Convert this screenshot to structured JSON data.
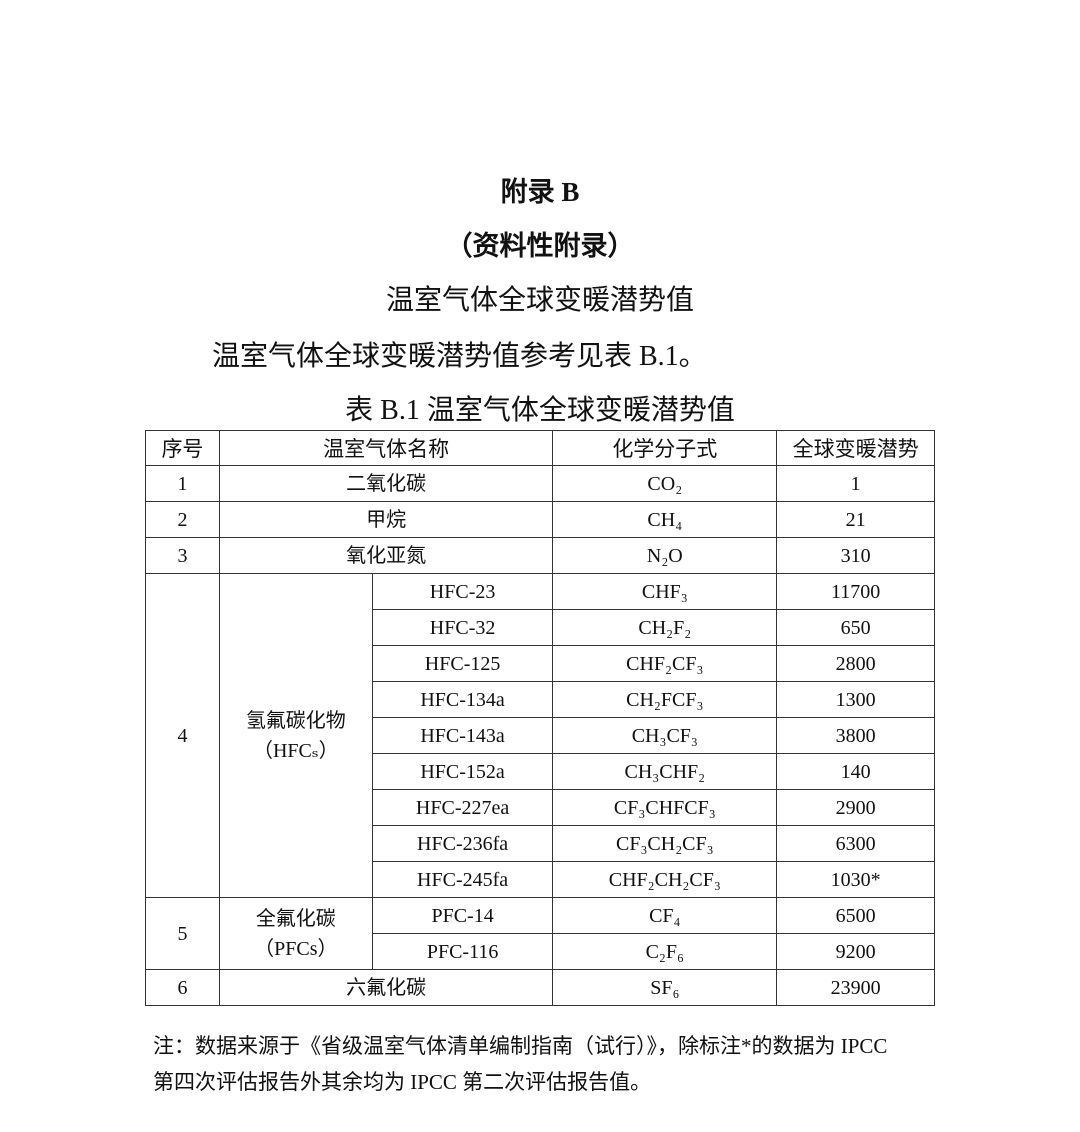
{
  "heading": {
    "appendix": "附录 B",
    "type": "（资料性附录）",
    "subject": "温室气体全球变暖潜势值"
  },
  "intro": "温室气体全球变暖潜势值参考见表 B.1。",
  "caption": "表 B.1  温室气体全球变暖潜势值",
  "table": {
    "headers": [
      "序号",
      "温室气体名称",
      "化学分子式",
      "全球变暖潜势"
    ],
    "simple_rows": [
      {
        "no": "1",
        "name": "二氧化碳",
        "formula": "CO₂",
        "gwp": "1"
      },
      {
        "no": "2",
        "name": "甲烷",
        "formula": "CH₄",
        "gwp": "21"
      },
      {
        "no": "3",
        "name": "氧化亚氮",
        "formula": "N₂O",
        "gwp": "310"
      }
    ],
    "hfc": {
      "no": "4",
      "group": "氢氟碳化物",
      "group_abbr": "（HFCₛ）",
      "rows": [
        {
          "name": "HFC-23",
          "formula": "CHF₃",
          "gwp": "11700"
        },
        {
          "name": "HFC-32",
          "formula": "CH₂F₂",
          "gwp": "650"
        },
        {
          "name": "HFC-125",
          "formula": "CHF₂CF₃",
          "gwp": "2800"
        },
        {
          "name": "HFC-134a",
          "formula": "CH₂FCF₃",
          "gwp": "1300"
        },
        {
          "name": "HFC-143a",
          "formula": "CH₃CF₃",
          "gwp": "3800"
        },
        {
          "name": "HFC-152a",
          "formula": "CH₃CHF₂",
          "gwp": "140"
        },
        {
          "name": "HFC-227ea",
          "formula": "CF₃CHFCF₃",
          "gwp": "2900"
        },
        {
          "name": "HFC-236fa",
          "formula": "CF₃CH₂CF₃",
          "gwp": "6300"
        },
        {
          "name": "HFC-245fa",
          "formula": "CHF₂CH₂CF₃",
          "gwp": "1030*"
        }
      ]
    },
    "pfc": {
      "no": "5",
      "group": "全氟化碳",
      "group_abbr": "（PFCs）",
      "rows": [
        {
          "name": "PFC-14",
          "formula": "CF₄",
          "gwp": "6500"
        },
        {
          "name": "PFC-116",
          "formula": "C₂F₆",
          "gwp": "9200"
        }
      ]
    },
    "sf6": {
      "no": "6",
      "name": "六氟化碳",
      "formula": "SF₆",
      "gwp": "23900"
    }
  },
  "note": {
    "line1": "注：数据来源于《省级温室气体清单编制指南（试行）》，除标注*的数据为 IPCC",
    "line2": "第四次评估报告外其余均为 IPCC 第二次评估报告值。"
  }
}
